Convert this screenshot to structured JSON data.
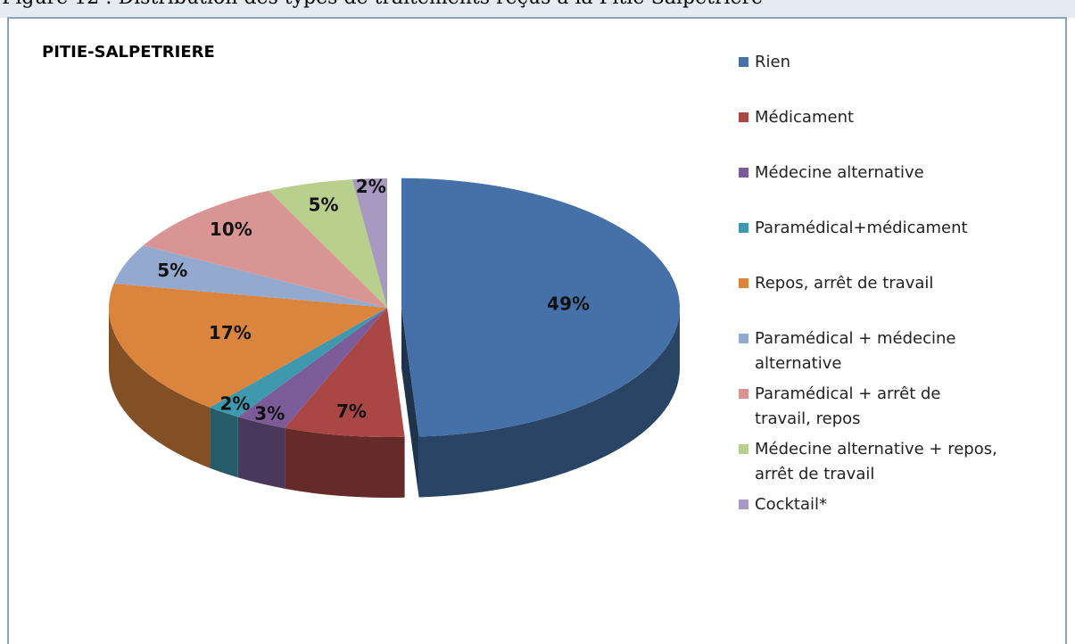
{
  "caption": "Figure 12 : Distribution des types de traitements reçus à la Pitié-Salpêtrière",
  "chart_data": {
    "type": "pie",
    "title": "PITIE-SALPETRIERE",
    "categories": [
      "Rien",
      "Médicament",
      "Médecine alternative",
      "Paramédical+médicament",
      "Repos, arrêt de travail",
      "Paramédical + médecine alternative",
      "Paramédical + arrêt de travail, repos",
      "Médecine alternative + repos, arrêt de travail",
      "Cocktail*"
    ],
    "values": [
      49,
      7,
      3,
      2,
      17,
      5,
      10,
      5,
      2
    ],
    "value_labels": [
      "49%",
      "7%",
      "3%",
      "2%",
      "17%",
      "5%",
      "10%",
      "5%",
      "2%"
    ],
    "colors": [
      "#4571a8",
      "#aa4644",
      "#7b5c99",
      "#3f99ae",
      "#db843d",
      "#94a9ce",
      "#d99594",
      "#b8cf8d",
      "#a899c2"
    ],
    "legend": "right"
  }
}
